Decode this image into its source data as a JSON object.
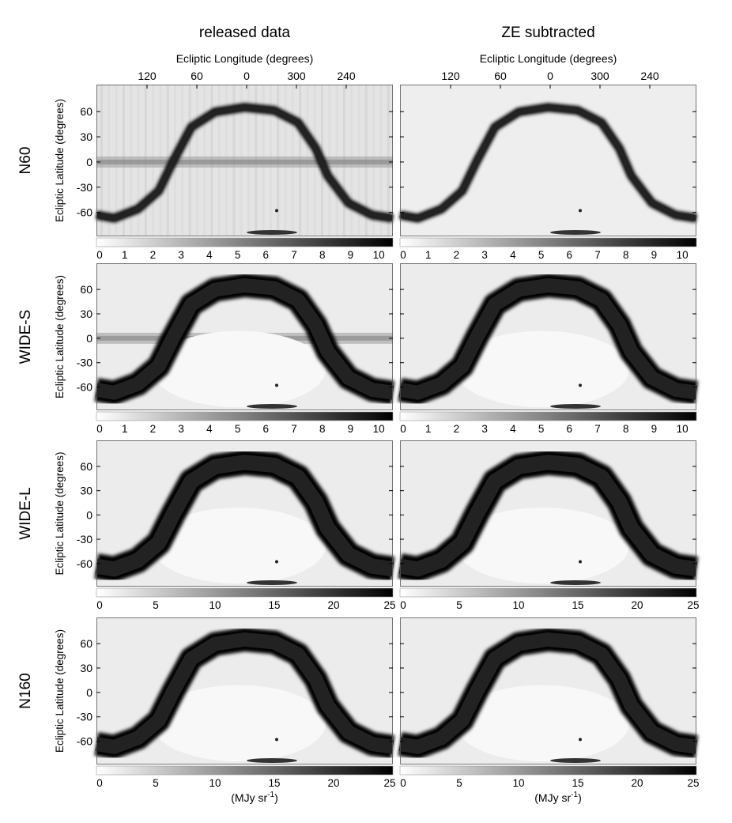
{
  "figure": {
    "column_titles": [
      "released data",
      "ZE subtracted"
    ],
    "lon_axis_label": "Ecliptic Longitude (degrees)",
    "lon_ticks": [
      "120",
      "60",
      "0",
      "300",
      "240"
    ],
    "lat_axis_label": "Ecliptic Latitude (degrees)",
    "lat_ticks": [
      "60",
      "30",
      "0",
      "-30",
      "-60"
    ],
    "colorbar_unit": {
      "prefix": "(MJy sr",
      "exp": "-1",
      "suffix": ")"
    },
    "colorbar_gradient": [
      "#ffffff",
      "#000000"
    ],
    "rows": [
      {
        "label": "N60",
        "colorbar_ticks": [
          "0",
          "1",
          "2",
          "3",
          "4",
          "5",
          "6",
          "7",
          "8",
          "9",
          "10"
        ],
        "colorbar_range": [
          0,
          10.5
        ]
      },
      {
        "label": "WIDE-S",
        "colorbar_ticks": [
          "0",
          "1",
          "2",
          "3",
          "4",
          "5",
          "6",
          "7",
          "8",
          "9",
          "10"
        ],
        "colorbar_range": [
          0,
          10.5
        ]
      },
      {
        "label": "WIDE-L",
        "colorbar_ticks": [
          "0",
          "5",
          "10",
          "15",
          "20",
          "25"
        ],
        "colorbar_range": [
          0,
          25
        ]
      },
      {
        "label": "N160",
        "colorbar_ticks": [
          "0",
          "5",
          "10",
          "15",
          "20",
          "25"
        ],
        "colorbar_range": [
          0,
          25
        ]
      }
    ]
  }
}
